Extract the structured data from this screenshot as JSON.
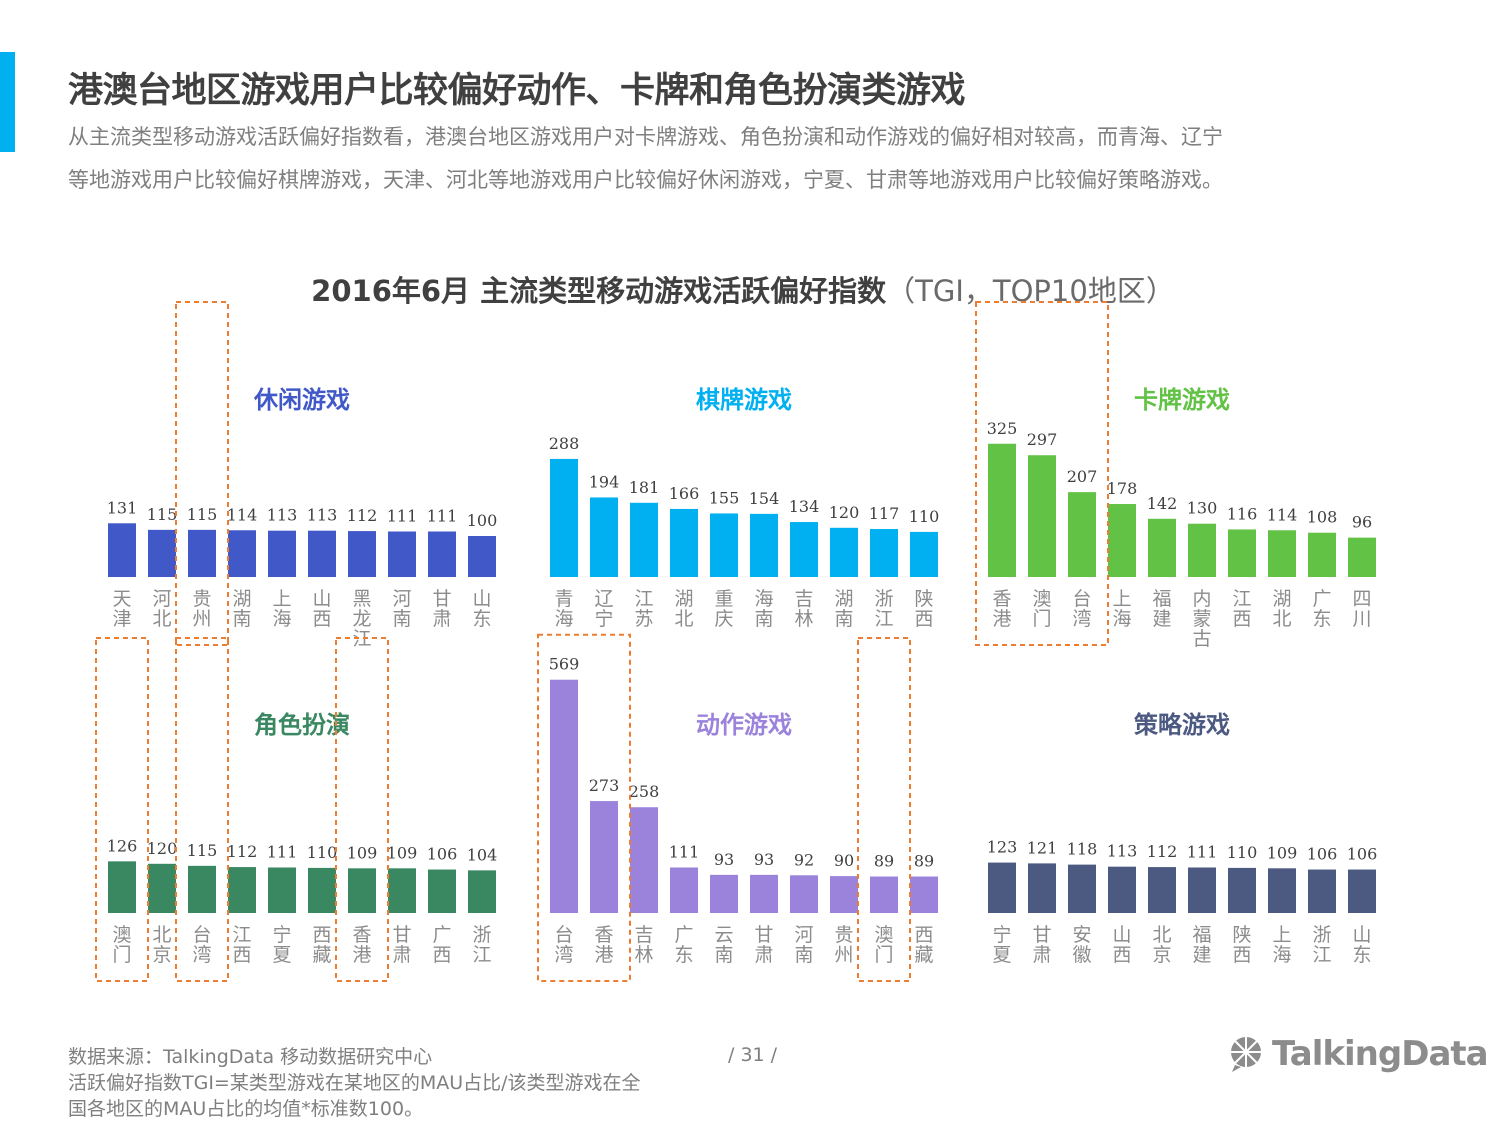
{
  "page": {
    "title": "港澳台地区游戏用户比较偏好动作、卡牌和角色扮演类游戏",
    "subtitle_line1": "从主流类型移动游戏活跃偏好指数看，港澳台地区游戏用户对卡牌游戏、角色扮演和动作游戏的偏好相对较高，而青海、辽宁",
    "subtitle_line2": "等地游戏用户比较偏好棋牌游戏，天津、河北等地游戏用户比较偏好休闲游戏，宁夏、甘肃等地游戏用户比较偏好策略游戏。",
    "accent_color": "#00b0f0"
  },
  "chart_title": {
    "bold": "2016年6月 主流类型移动游戏活跃偏好指数",
    "light": "（TGI，TOP10地区）"
  },
  "chart_data": [
    {
      "type": "bar",
      "title": "休闲游戏",
      "color": "#4159c8",
      "categories": [
        "天津",
        "河北",
        "贵州",
        "湖南",
        "上海",
        "山西",
        "黑龙江",
        "河南",
        "甘肃",
        "山东"
      ],
      "values": [
        131,
        115,
        115,
        114,
        113,
        113,
        112,
        111,
        111,
        100
      ],
      "highlight_categories": [
        "贵州"
      ]
    },
    {
      "type": "bar",
      "title": "棋牌游戏",
      "color": "#00b0f0",
      "categories": [
        "青海",
        "辽宁",
        "江苏",
        "湖北",
        "重庆",
        "海南",
        "吉林",
        "湖南",
        "浙江",
        "陕西"
      ],
      "values": [
        288,
        194,
        181,
        166,
        155,
        154,
        134,
        120,
        117,
        110
      ],
      "highlight_categories": []
    },
    {
      "type": "bar",
      "title": "卡牌游戏",
      "color": "#62c246",
      "categories": [
        "香港",
        "澳门",
        "台湾",
        "上海",
        "福建",
        "内蒙古",
        "江西",
        "湖北",
        "广东",
        "四川"
      ],
      "values": [
        325,
        297,
        207,
        178,
        142,
        130,
        116,
        114,
        108,
        96
      ],
      "highlight_categories": [
        "香港",
        "澳门",
        "台湾"
      ]
    },
    {
      "type": "bar",
      "title": "角色扮演",
      "color": "#3a8862",
      "categories": [
        "澳门",
        "北京",
        "台湾",
        "江西",
        "宁夏",
        "西藏",
        "香港",
        "甘肃",
        "广西",
        "浙江"
      ],
      "values": [
        126,
        120,
        115,
        112,
        111,
        110,
        109,
        109,
        106,
        104
      ],
      "highlight_categories": [
        "澳门",
        "台湾",
        "香港"
      ]
    },
    {
      "type": "bar",
      "title": "动作游戏",
      "color": "#9b83dc",
      "categories": [
        "台湾",
        "香港",
        "吉林",
        "广东",
        "云南",
        "甘肃",
        "河南",
        "贵州",
        "澳门",
        "西藏"
      ],
      "values": [
        569,
        273,
        258,
        111,
        93,
        93,
        92,
        90,
        89,
        89
      ],
      "highlight_categories": [
        "台湾",
        "香港",
        "澳门"
      ]
    },
    {
      "type": "bar",
      "title": "策略游戏",
      "color": "#4c5a82",
      "categories": [
        "宁夏",
        "甘肃",
        "安徽",
        "山西",
        "北京",
        "福建",
        "陕西",
        "上海",
        "浙江",
        "山东"
      ],
      "values": [
        123,
        121,
        118,
        113,
        112,
        111,
        110,
        109,
        106,
        106
      ],
      "highlight_categories": []
    }
  ],
  "footer": {
    "source_line1": "数据来源：TalkingData  移动数据研究中心",
    "source_line2": "活跃偏好指数TGI=某类型游戏在某地区的MAU占比/该类型游戏在全",
    "source_line3": "国各地区的MAU占比的均值*标准数100。",
    "page_number": "/  31  /",
    "logo_text": "TalkingData",
    "logo_color": "#8c8c8c"
  }
}
